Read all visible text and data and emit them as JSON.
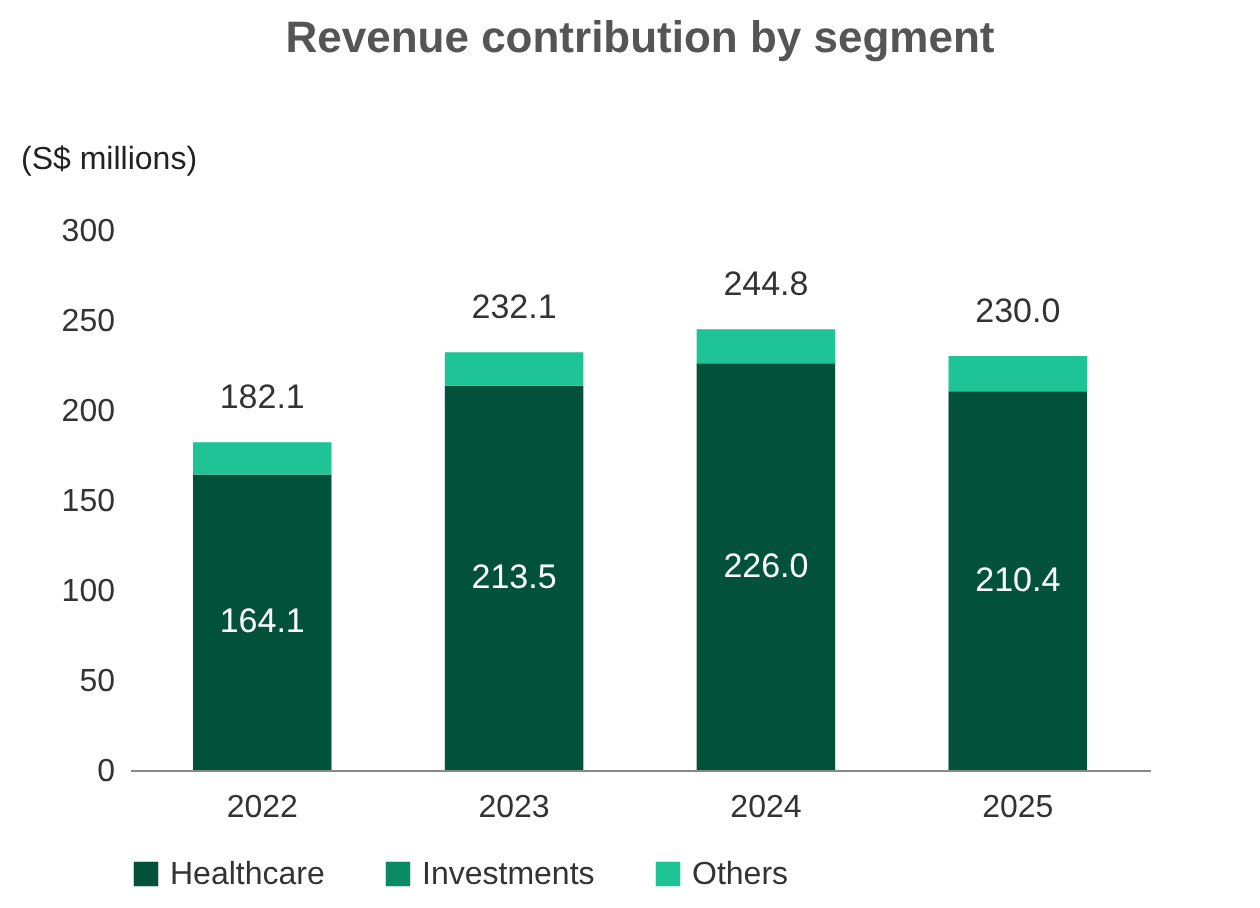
{
  "chart_data": {
    "type": "bar",
    "title": "Revenue contribution by segment",
    "ylabel": "(S$ millions)",
    "stacked": true,
    "categories": [
      "2022",
      "2023",
      "2024",
      "2025"
    ],
    "series": [
      {
        "name": "Healthcare",
        "color": "#02523b",
        "values": [
          164.1,
          213.5,
          226.0,
          210.4
        ],
        "value_labels": [
          "164.1",
          "213.5",
          "226.0",
          "210.4"
        ]
      },
      {
        "name": "Investments",
        "color": "#0a8a65",
        "values": [
          0,
          0,
          0,
          0
        ]
      },
      {
        "name": "Others",
        "color": "#1ec496",
        "values": [
          18.0,
          18.6,
          18.8,
          19.6
        ]
      }
    ],
    "totals": [
      "182.1",
      "232.1",
      "244.8",
      "230.0"
    ],
    "ylim": [
      0,
      300
    ],
    "yticks": [
      0,
      50,
      100,
      150,
      200,
      250,
      300
    ],
    "grid": false,
    "legend": "bottom"
  }
}
